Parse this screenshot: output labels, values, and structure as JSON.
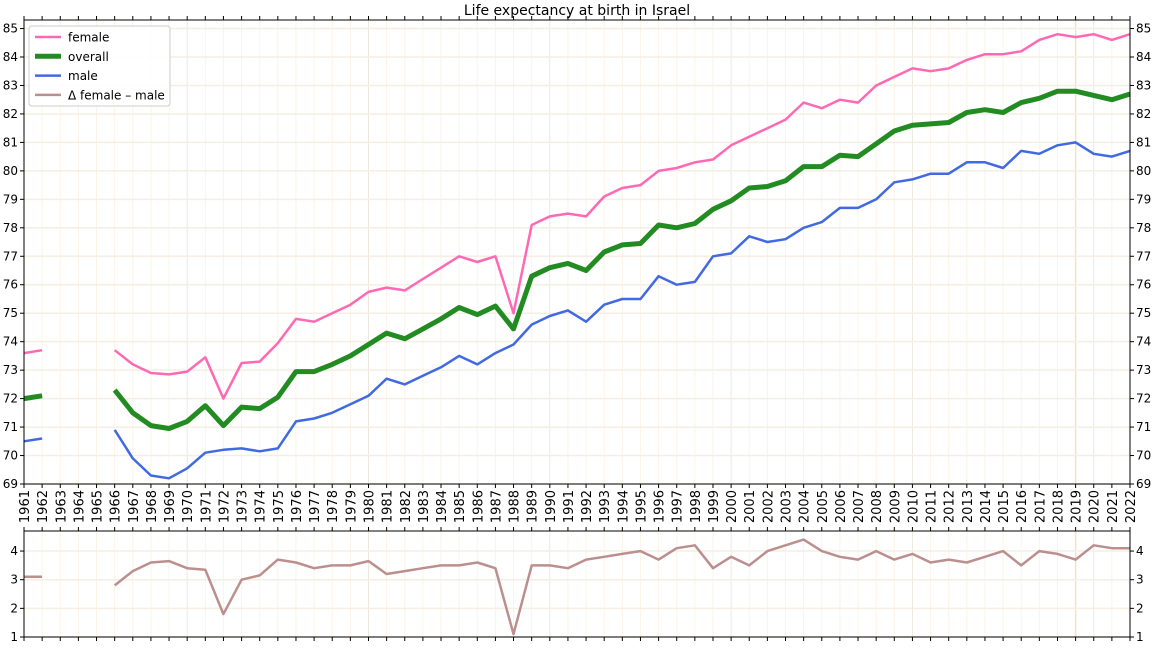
{
  "chart_data": [
    {
      "type": "line",
      "title": "Life expectancy at birth in Israel",
      "xlabel": "",
      "ylabel": "",
      "xlim": [
        1961,
        2022
      ],
      "ylim": [
        69,
        85.3
      ],
      "yticks": [
        69,
        70,
        71,
        72,
        73,
        74,
        75,
        76,
        77,
        78,
        79,
        80,
        81,
        82,
        83,
        84,
        85
      ],
      "grid": true,
      "legend_position": "top-left",
      "x": [
        1961,
        1962,
        1963,
        1964,
        1965,
        1966,
        1967,
        1968,
        1969,
        1970,
        1971,
        1972,
        1973,
        1974,
        1975,
        1976,
        1977,
        1978,
        1979,
        1980,
        1981,
        1982,
        1983,
        1984,
        1985,
        1986,
        1987,
        1988,
        1989,
        1990,
        1991,
        1992,
        1993,
        1994,
        1995,
        1996,
        1997,
        1998,
        1999,
        2000,
        2001,
        2002,
        2003,
        2004,
        2005,
        2006,
        2007,
        2008,
        2009,
        2010,
        2011,
        2012,
        2013,
        2014,
        2015,
        2016,
        2017,
        2018,
        2019,
        2020,
        2021,
        2022
      ],
      "series": [
        {
          "name": "female",
          "color": "#ff69b4",
          "values": [
            73.6,
            73.7,
            null,
            null,
            null,
            73.7,
            73.2,
            72.9,
            72.85,
            72.95,
            73.45,
            72.0,
            73.25,
            73.3,
            73.95,
            74.8,
            74.7,
            75.0,
            75.3,
            75.75,
            75.9,
            75.8,
            76.2,
            76.6,
            77.0,
            76.8,
            77.0,
            75.0,
            78.1,
            78.4,
            78.5,
            78.4,
            79.1,
            79.4,
            79.5,
            80.0,
            80.1,
            80.3,
            80.4,
            80.9,
            81.2,
            81.5,
            81.8,
            82.4,
            82.2,
            82.5,
            82.4,
            83.0,
            83.3,
            83.6,
            83.5,
            83.6,
            83.9,
            84.1,
            84.1,
            84.2,
            84.6,
            84.8,
            84.7,
            84.8,
            84.6,
            84.8
          ]
        },
        {
          "name": "overall",
          "color": "#228b22",
          "values": [
            72.0,
            72.1,
            null,
            null,
            null,
            72.3,
            71.5,
            71.05,
            70.95,
            71.2,
            71.75,
            71.05,
            71.7,
            71.65,
            72.05,
            72.95,
            72.95,
            73.2,
            73.5,
            73.9,
            74.3,
            74.1,
            74.45,
            74.8,
            75.2,
            74.95,
            75.25,
            74.45,
            76.3,
            76.6,
            76.75,
            76.5,
            77.15,
            77.4,
            77.45,
            78.1,
            78.0,
            78.15,
            78.65,
            78.95,
            79.4,
            79.45,
            79.65,
            80.15,
            80.15,
            80.55,
            80.5,
            80.95,
            81.4,
            81.6,
            81.65,
            81.7,
            82.05,
            82.15,
            82.05,
            82.4,
            82.55,
            82.8,
            82.8,
            82.65,
            82.5,
            82.7
          ]
        },
        {
          "name": "male",
          "color": "#4169e1",
          "values": [
            70.5,
            70.6,
            null,
            null,
            null,
            70.9,
            69.9,
            69.3,
            69.2,
            69.55,
            70.1,
            70.2,
            70.25,
            70.15,
            70.25,
            71.2,
            71.3,
            71.5,
            71.8,
            72.1,
            72.7,
            72.5,
            72.8,
            73.1,
            73.5,
            73.2,
            73.6,
            73.9,
            74.6,
            74.9,
            75.1,
            74.7,
            75.3,
            75.5,
            75.5,
            76.3,
            76.0,
            76.1,
            77.0,
            77.1,
            77.7,
            77.5,
            77.6,
            78.0,
            78.2,
            78.7,
            78.7,
            79.0,
            79.6,
            79.7,
            79.9,
            79.9,
            80.3,
            80.3,
            80.1,
            80.7,
            80.6,
            80.9,
            81.0,
            80.6,
            80.5,
            80.7
          ]
        }
      ],
      "legend_extra": {
        "name": "Δ female – male",
        "color": "#bc8f8f"
      }
    },
    {
      "type": "line",
      "xlim": [
        1961,
        2022
      ],
      "ylim": [
        1,
        4.7
      ],
      "yticks": [
        1,
        2,
        3,
        4
      ],
      "grid": true,
      "series": [
        {
          "name": "Δ female – male",
          "color": "#bc8f8f",
          "values": [
            3.1,
            3.1,
            null,
            null,
            null,
            2.8,
            3.3,
            3.6,
            3.65,
            3.4,
            3.35,
            1.8,
            3.0,
            3.15,
            3.7,
            3.6,
            3.4,
            3.5,
            3.5,
            3.65,
            3.2,
            3.3,
            3.4,
            3.5,
            3.5,
            3.6,
            3.4,
            1.1,
            3.5,
            3.5,
            3.4,
            3.7,
            3.8,
            3.9,
            4.0,
            3.7,
            4.1,
            4.2,
            3.4,
            3.8,
            3.5,
            4.0,
            4.2,
            4.4,
            4.0,
            3.8,
            3.7,
            4.0,
            3.7,
            3.9,
            3.6,
            3.7,
            3.6,
            3.8,
            4.0,
            3.5,
            4.0,
            3.9,
            3.7,
            4.2,
            4.1,
            4.1
          ]
        }
      ]
    }
  ]
}
